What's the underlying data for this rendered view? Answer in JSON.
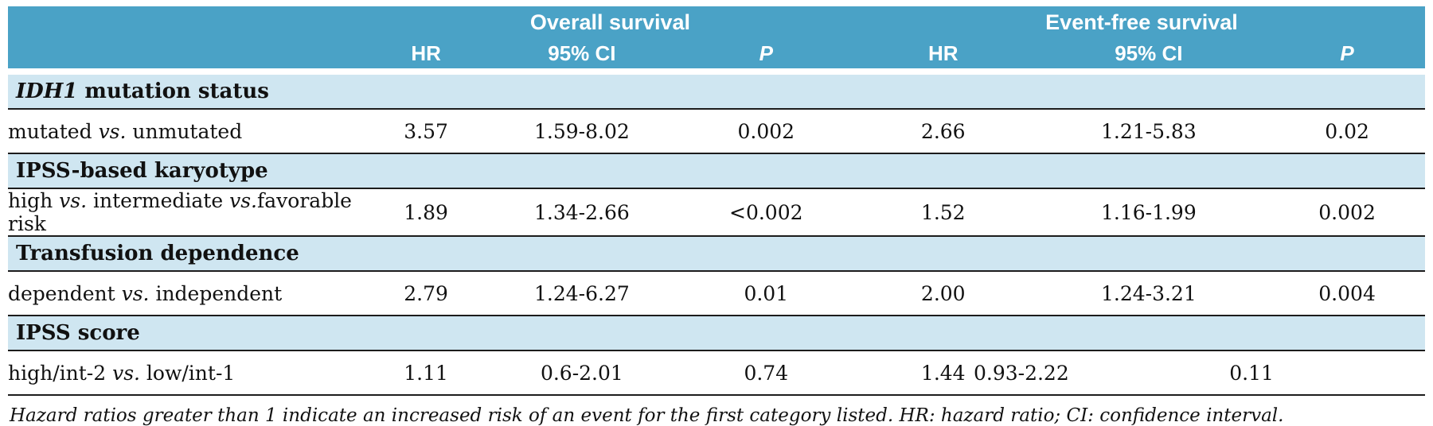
{
  "colors": {
    "header_bg": "#4aa2c6",
    "section_bg": "#cfe6f1"
  },
  "header": {
    "overall": "Overall survival",
    "event_free": "Event-free survival",
    "hr": "HR",
    "ci": "95% CI",
    "p": "P"
  },
  "sections": [
    {
      "title_italic": "IDH1",
      "title_rest": " mutation status",
      "row": {
        "label_1": "mutated ",
        "label_vs": "vs.",
        "label_2": " unmutated",
        "os_hr": "3.57",
        "os_ci": "1.59-8.02",
        "os_p": "0.002",
        "efs_hr": "2.66",
        "efs_ci": "1.21-5.83",
        "efs_p": "0.02"
      }
    },
    {
      "title_rest": "IPSS-based karyotype",
      "row": {
        "label_1": "high ",
        "label_vs": "vs.",
        "label_2": " intermediate ",
        "label_vs2": "vs.",
        "label_3": "favorable risk",
        "os_hr": "1.89",
        "os_ci": "1.34-2.66",
        "os_p": "<0.002",
        "efs_hr": "1.52",
        "efs_ci": "1.16-1.99",
        "efs_p": "0.002"
      }
    },
    {
      "title_rest": "Transfusion dependence",
      "row": {
        "label_1": "dependent ",
        "label_vs": "vs.",
        "label_2": " independent",
        "os_hr": "2.79",
        "os_ci": "1.24-6.27",
        "os_p": "0.01",
        "efs_hr": "2.00",
        "efs_ci": "1.24-3.21",
        "efs_p": "0.004"
      }
    },
    {
      "title_rest": "IPSS score",
      "row": {
        "label_1": "high/int-2 ",
        "label_vs": "vs.",
        "label_2": " low/int-1",
        "os_hr": "1.11",
        "os_ci": "0.6-2.01",
        "os_p": "0.74",
        "efs_hr": "1.44",
        "efs_ci": "0.93-2.22",
        "efs_p": "0.11"
      }
    }
  ],
  "footnote": "Hazard ratios greater than 1 indicate an increased risk of an event for the first category listed. HR: hazard ratio; CI:  confidence interval."
}
